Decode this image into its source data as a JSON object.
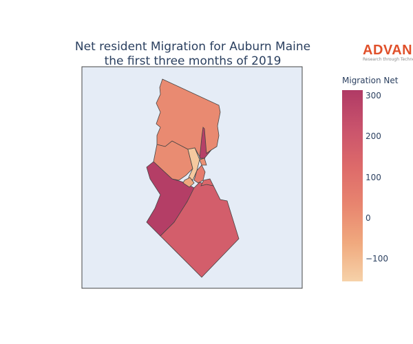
{
  "chart_data": {
    "type": "choropleth",
    "title_lines": [
      "Net resident Migration for Auburn Maine",
      "the first three months of 2019"
    ],
    "colorbar": {
      "title": "Migration Net",
      "range": [
        -156,
        314
      ],
      "ticks": [
        300,
        200,
        100,
        0,
        -100
      ],
      "tick_labels": [
        "300",
        "200",
        "100",
        "0",
        "−100"
      ],
      "colorscale": [
        "#f6d2a9",
        "#f0a97e",
        "#e8856f",
        "#dd6a6a",
        "#c9536c",
        "#b03a65"
      ]
    },
    "regions": [
      {
        "value": 20
      },
      {
        "value": 15
      },
      {
        "value": 300
      },
      {
        "value": 290
      },
      {
        "value": 175
      },
      {
        "value": -135
      },
      {
        "value": 60
      },
      {
        "value": 140
      },
      {
        "value": 0
      },
      {
        "value": -60
      }
    ],
    "background": "#e5ecf6",
    "border_color": "#444444"
  },
  "logo": {
    "word": "ADVAN",
    "tagline": "Research through Technology"
  }
}
